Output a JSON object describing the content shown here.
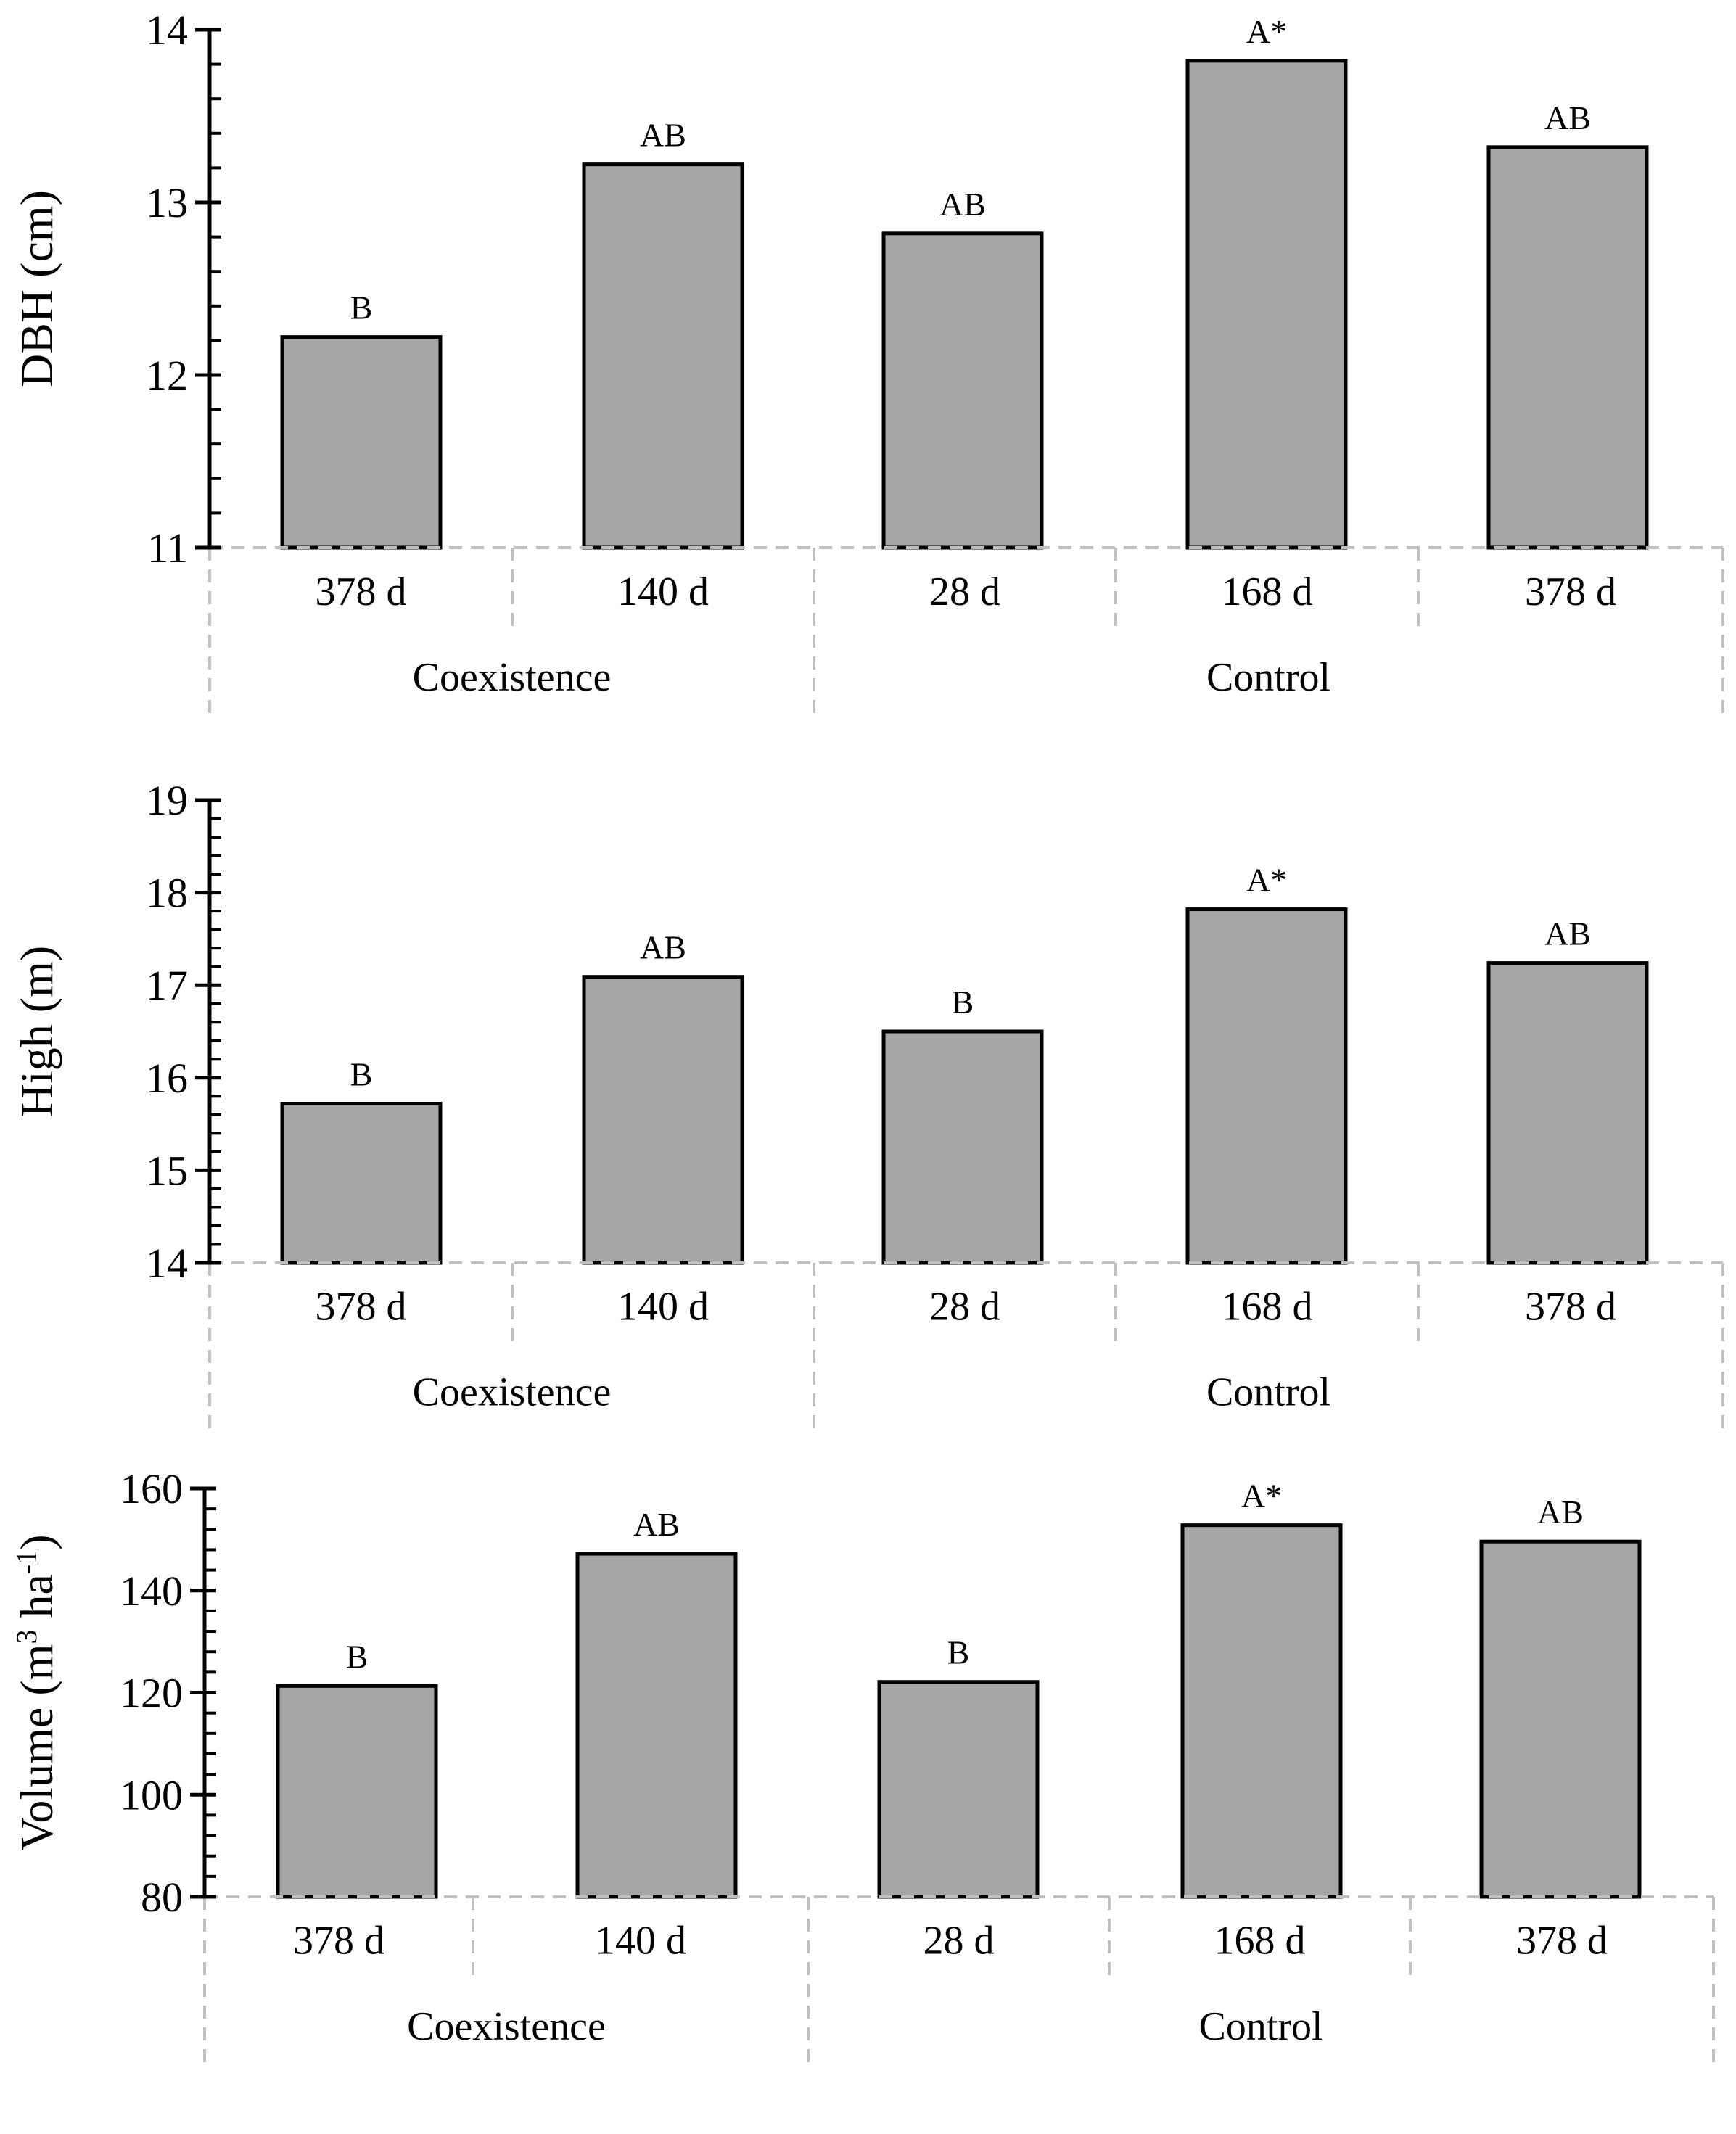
{
  "colors": {
    "bar_fill": "#a6a6a6",
    "bar_stroke": "#000000",
    "axis": "#000000",
    "category_grid": "#c0c0c0",
    "text": "#000000"
  },
  "chart_data": [
    {
      "type": "bar",
      "ylabel": "DBH (cm)",
      "ylim": [
        11,
        14
      ],
      "major_ticks": [
        11,
        12,
        13,
        14
      ],
      "minor_step": 0.2,
      "categories": [
        "378 d",
        "140 d",
        "28 d",
        "168 d",
        "378 d"
      ],
      "groups": [
        {
          "name": "Coexistence",
          "span": [
            0,
            1
          ]
        },
        {
          "name": "Control",
          "span": [
            2,
            4
          ]
        }
      ],
      "values": [
        12.22,
        13.22,
        12.82,
        13.82,
        13.32
      ],
      "labels": [
        "B",
        "AB",
        "AB",
        "A*",
        "AB"
      ],
      "xlabel": ""
    },
    {
      "type": "bar",
      "ylabel": "High (m)",
      "ylim": [
        14,
        19
      ],
      "major_ticks": [
        14,
        15,
        16,
        17,
        18,
        19
      ],
      "minor_step": 0.2,
      "categories": [
        "378 d",
        "140 d",
        "28 d",
        "168 d",
        "378 d"
      ],
      "groups": [
        {
          "name": "Coexistence",
          "span": [
            0,
            1
          ]
        },
        {
          "name": "Control",
          "span": [
            2,
            4
          ]
        }
      ],
      "values": [
        15.72,
        17.09,
        16.5,
        17.82,
        17.24
      ],
      "labels": [
        "B",
        "AB",
        "B",
        "A*",
        "AB"
      ],
      "xlabel": ""
    },
    {
      "type": "bar",
      "ylabel": "Volume (m³ ha⁻¹)",
      "ylabel_main": "Volume  (m",
      "ylabel_sup1": "3",
      "ylabel_mid": " ha",
      "ylabel_sup2": "-1",
      "ylabel_end": ")",
      "ylim": [
        80,
        160
      ],
      "major_ticks": [
        80,
        100,
        120,
        140,
        160
      ],
      "minor_step": 4,
      "categories": [
        "378 d",
        "140 d",
        "28 d",
        "168 d",
        "378 d"
      ],
      "groups": [
        {
          "name": "Coexistence",
          "span": [
            0,
            1
          ]
        },
        {
          "name": "Control",
          "span": [
            2,
            4
          ]
        }
      ],
      "values": [
        121.3,
        147.2,
        122.1,
        152.8,
        149.6
      ],
      "labels": [
        "B",
        "AB",
        "B",
        "A*",
        "AB"
      ],
      "xlabel": ""
    }
  ]
}
